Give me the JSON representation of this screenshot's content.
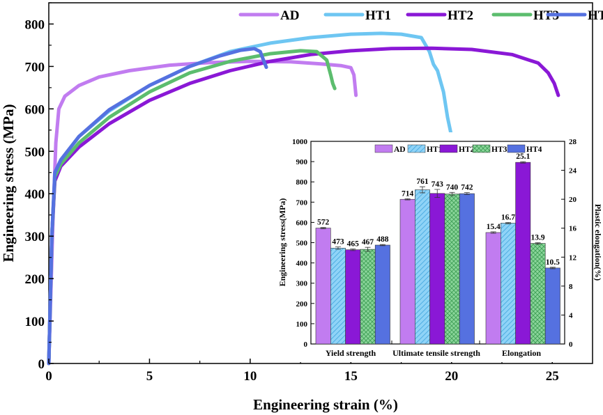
{
  "colors": {
    "AD": "#c17cf0",
    "HT1": "#6ec6f2",
    "HT2": "#8a18d6",
    "HT3": "#5cbd6e",
    "HT4": "#5571e0"
  },
  "chart_data": [
    {
      "type": "line",
      "title": "",
      "xlabel": "Engineering strain (%)",
      "ylabel": "Engineering stress (MPa)",
      "xlim": [
        0,
        27
      ],
      "ylim": [
        0,
        850
      ],
      "xticks": [
        "0",
        "5",
        "10",
        "15",
        "20",
        "25"
      ],
      "yticks": [
        "0",
        "100",
        "200",
        "300",
        "400",
        "500",
        "600",
        "700",
        "800"
      ],
      "legend_position": "top-right",
      "series": [
        {
          "name": "AD",
          "color_key": "AD",
          "points": [
            [
              0,
              0
            ],
            [
              0.2,
              330
            ],
            [
              0.35,
              520
            ],
            [
              0.5,
              600
            ],
            [
              0.8,
              630
            ],
            [
              1.5,
              655
            ],
            [
              2.5,
              675
            ],
            [
              4,
              690
            ],
            [
              6,
              703
            ],
            [
              8,
              709
            ],
            [
              10,
              712
            ],
            [
              12,
              711
            ],
            [
              13.5,
              706
            ],
            [
              14.5,
              702
            ],
            [
              15,
              697
            ],
            [
              15.15,
              680
            ],
            [
              15.25,
              632
            ]
          ]
        },
        {
          "name": "HT1",
          "color_key": "HT1",
          "points": [
            [
              0,
              0
            ],
            [
              0.15,
              300
            ],
            [
              0.3,
              440
            ],
            [
              0.6,
              480
            ],
            [
              1.5,
              535
            ],
            [
              3,
              595
            ],
            [
              5,
              655
            ],
            [
              7,
              700
            ],
            [
              9,
              735
            ],
            [
              11,
              755
            ],
            [
              13,
              768
            ],
            [
              15,
              776
            ],
            [
              16.5,
              778
            ],
            [
              17.5,
              776
            ],
            [
              18.5,
              768
            ],
            [
              18.9,
              735
            ],
            [
              19.1,
              705
            ],
            [
              19.3,
              690
            ],
            [
              19.6,
              640
            ],
            [
              19.8,
              580
            ],
            [
              20,
              535
            ]
          ]
        },
        {
          "name": "HT2",
          "color_key": "HT2",
          "points": [
            [
              0,
              0
            ],
            [
              0.15,
              300
            ],
            [
              0.3,
              430
            ],
            [
              0.6,
              465
            ],
            [
              1.5,
              510
            ],
            [
              3,
              565
            ],
            [
              5,
              620
            ],
            [
              7,
              660
            ],
            [
              9,
              690
            ],
            [
              11,
              712
            ],
            [
              13,
              728
            ],
            [
              15,
              737
            ],
            [
              17,
              742
            ],
            [
              19,
              743
            ],
            [
              21,
              740
            ],
            [
              23,
              728
            ],
            [
              24.3,
              708
            ],
            [
              24.8,
              685
            ],
            [
              25.1,
              660
            ],
            [
              25.3,
              632
            ]
          ]
        },
        {
          "name": "HT3",
          "color_key": "HT3",
          "points": [
            [
              0,
              0
            ],
            [
              0.15,
              300
            ],
            [
              0.3,
              440
            ],
            [
              0.6,
              470
            ],
            [
              1.5,
              520
            ],
            [
              3,
              580
            ],
            [
              5,
              640
            ],
            [
              7,
              685
            ],
            [
              9,
              712
            ],
            [
              11,
              730
            ],
            [
              12.5,
              737
            ],
            [
              13.3,
              735
            ],
            [
              13.8,
              715
            ],
            [
              14,
              680
            ],
            [
              14.1,
              660
            ],
            [
              14.2,
              648
            ]
          ]
        },
        {
          "name": "HT4",
          "color_key": "HT4",
          "points": [
            [
              0,
              0
            ],
            [
              0.15,
              300
            ],
            [
              0.3,
              450
            ],
            [
              0.6,
              480
            ],
            [
              1.5,
              535
            ],
            [
              3,
              598
            ],
            [
              5,
              655
            ],
            [
              7,
              700
            ],
            [
              8.5,
              725
            ],
            [
              9.5,
              738
            ],
            [
              10.2,
              742
            ],
            [
              10.5,
              735
            ],
            [
              10.7,
              710
            ],
            [
              10.8,
              698
            ]
          ]
        }
      ]
    },
    {
      "type": "bar",
      "title": "",
      "ylabel": "Engineering stress(MPa)",
      "y2label": "Plastic elongation(%)",
      "ylim": [
        0,
        1000
      ],
      "y2lim": [
        0,
        28
      ],
      "yticks": [
        "0",
        "100",
        "200",
        "300",
        "400",
        "500",
        "600",
        "700",
        "800",
        "900",
        "1000"
      ],
      "y2ticks": [
        "0",
        "4",
        "8",
        "12",
        "16",
        "20",
        "24",
        "28"
      ],
      "categories": [
        "Yield strength",
        "Ultimate tensile strength",
        "Elongation"
      ],
      "legend_position": "top",
      "series": [
        {
          "name": "AD",
          "color_key": "AD",
          "pattern": "solid",
          "values": [
            572,
            714,
            15.4
          ],
          "labels": [
            "572",
            "714",
            "15.4"
          ],
          "errors": [
            3,
            3,
            0.1
          ]
        },
        {
          "name": "HT1",
          "color_key": "HT1",
          "pattern": "diagonal",
          "values": [
            473,
            761,
            16.7
          ],
          "labels": [
            "473",
            "761",
            "16.7"
          ],
          "errors": [
            6,
            15,
            0.1
          ]
        },
        {
          "name": "HT2",
          "color_key": "HT2",
          "pattern": "solid",
          "values": [
            465,
            743,
            25.1
          ],
          "labels": [
            "465",
            "743",
            "25.1"
          ],
          "errors": [
            4,
            20,
            0.1
          ]
        },
        {
          "name": "HT3",
          "color_key": "HT3",
          "pattern": "crosshatch",
          "values": [
            467,
            740,
            13.9
          ],
          "labels": [
            "467",
            "740",
            "13.9"
          ],
          "errors": [
            10,
            8,
            0.1
          ]
        },
        {
          "name": "HT4",
          "color_key": "HT4",
          "pattern": "solid",
          "values": [
            488,
            742,
            10.5
          ],
          "labels": [
            "488",
            "742",
            "10.5"
          ],
          "errors": [
            3,
            5,
            0.1
          ]
        }
      ],
      "secondary_axis_category": "Elongation"
    }
  ]
}
